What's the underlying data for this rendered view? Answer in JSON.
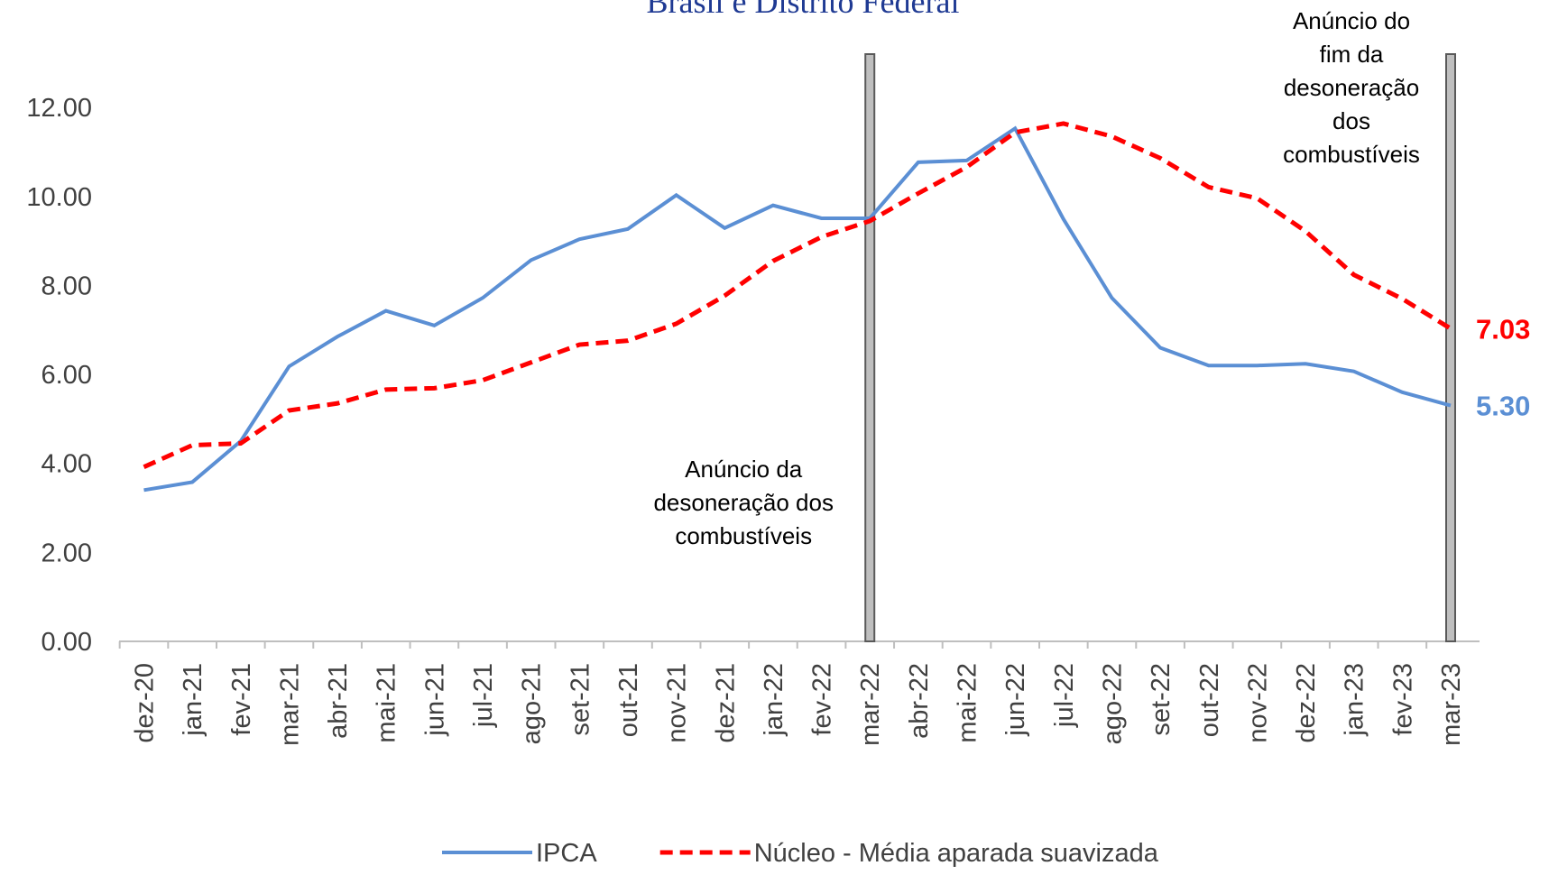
{
  "chart_data": {
    "type": "line",
    "title": "Brasil e Distrito Federal",
    "categories": [
      "dez-20",
      "jan-21",
      "fev-21",
      "mar-21",
      "abr-21",
      "mai-21",
      "jun-21",
      "jul-21",
      "ago-21",
      "set-21",
      "out-21",
      "nov-21",
      "dez-21",
      "jan-22",
      "fev-22",
      "mar-22",
      "abr-22",
      "mai-22",
      "jun-22",
      "jul-22",
      "ago-22",
      "set-22",
      "out-22",
      "nov-22",
      "dez-22",
      "jan-23",
      "fev-23",
      "mar-23"
    ],
    "series": [
      {
        "name": "IPCA",
        "color": "#5b8fd4",
        "dash": false,
        "values": [
          3.4,
          3.58,
          4.5,
          6.18,
          6.85,
          7.43,
          7.1,
          7.72,
          8.57,
          9.04,
          9.27,
          10.03,
          9.29,
          9.8,
          9.51,
          9.51,
          10.77,
          10.81,
          11.53,
          9.49,
          7.72,
          6.6,
          6.2,
          6.2,
          6.24,
          6.07,
          5.6,
          5.3
        ],
        "value_labels": [
          null,
          null,
          null,
          null,
          null,
          null,
          null,
          null,
          null,
          null,
          null,
          null,
          null,
          null,
          null,
          null,
          null,
          null,
          null,
          null,
          null,
          null,
          null,
          null,
          null,
          null,
          null,
          "5.30"
        ]
      },
      {
        "name": "Núcleo - Média aparada suavizada",
        "color": "#ff0000",
        "dash": true,
        "values": [
          3.92,
          4.41,
          4.45,
          5.19,
          5.35,
          5.66,
          5.69,
          5.87,
          6.27,
          6.67,
          6.76,
          7.14,
          7.77,
          8.55,
          9.09,
          9.45,
          10.07,
          10.66,
          11.44,
          11.64,
          11.35,
          10.86,
          10.21,
          9.96,
          9.22,
          8.24,
          7.7,
          7.03
        ],
        "value_labels": [
          null,
          null,
          null,
          null,
          null,
          null,
          null,
          null,
          null,
          null,
          null,
          null,
          null,
          null,
          null,
          null,
          null,
          null,
          null,
          null,
          null,
          null,
          null,
          null,
          null,
          null,
          null,
          "7.03"
        ]
      }
    ],
    "ylim": [
      0,
      13.2
    ],
    "yticks": [
      {
        "value": 0,
        "label": "0.00"
      },
      {
        "value": 2,
        "label": "2.00"
      },
      {
        "value": 4,
        "label": "4.00"
      },
      {
        "value": 6,
        "label": "6.00"
      },
      {
        "value": 8,
        "label": "8.00"
      },
      {
        "value": 10,
        "label": "10.00"
      },
      {
        "value": 12,
        "label": "12.00"
      }
    ],
    "grid": false,
    "legend": "bottom",
    "annotations": [
      {
        "category": "mar-22",
        "lines": [
          "Anúncio da",
          "desoneração dos",
          "combustíveis"
        ]
      },
      {
        "category": "mar-23",
        "lines": [
          "Anúncio do",
          "fim da",
          "desoneração",
          "dos",
          "combustíveis"
        ]
      }
    ]
  }
}
